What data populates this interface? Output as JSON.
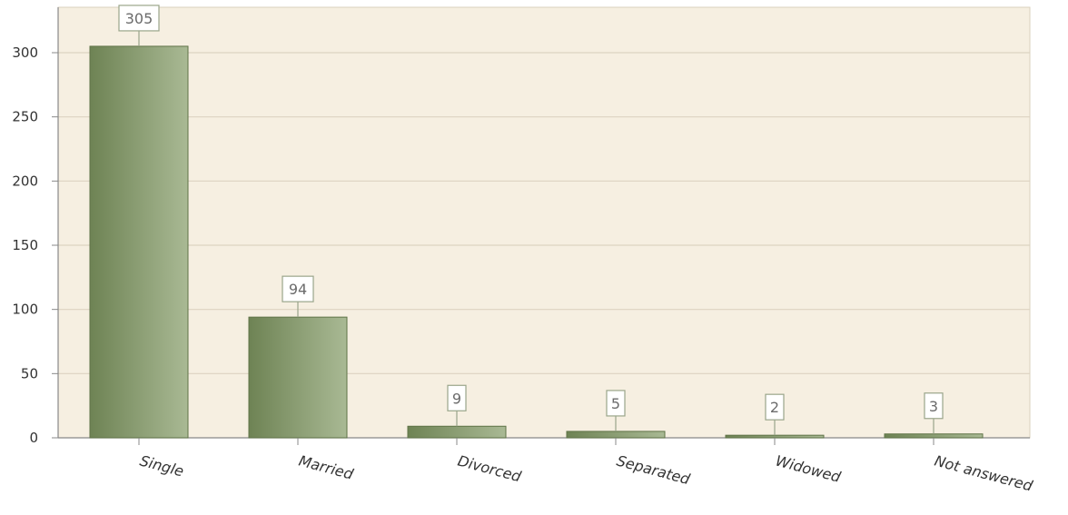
{
  "chart_data": {
    "type": "bar",
    "title": "",
    "xlabel": "",
    "ylabel": "",
    "categories": [
      "Single",
      "Married",
      "Divorced",
      "Separated",
      "Widowed",
      "Not answered"
    ],
    "values": [
      305,
      94,
      9,
      5,
      2,
      3
    ],
    "ylim": [
      0,
      335
    ],
    "yticks": [
      0,
      50,
      100,
      150,
      200,
      250,
      300
    ],
    "grid": true,
    "legend": "none",
    "data_labels": true,
    "colors": {
      "plot_background": "#f6efe1",
      "bar_dark": "#6e8354",
      "bar_light": "#a9b994",
      "bar_edge": "#5f7347",
      "grid": "#dcd3c1",
      "label_box_border": "#9aa58a"
    }
  }
}
